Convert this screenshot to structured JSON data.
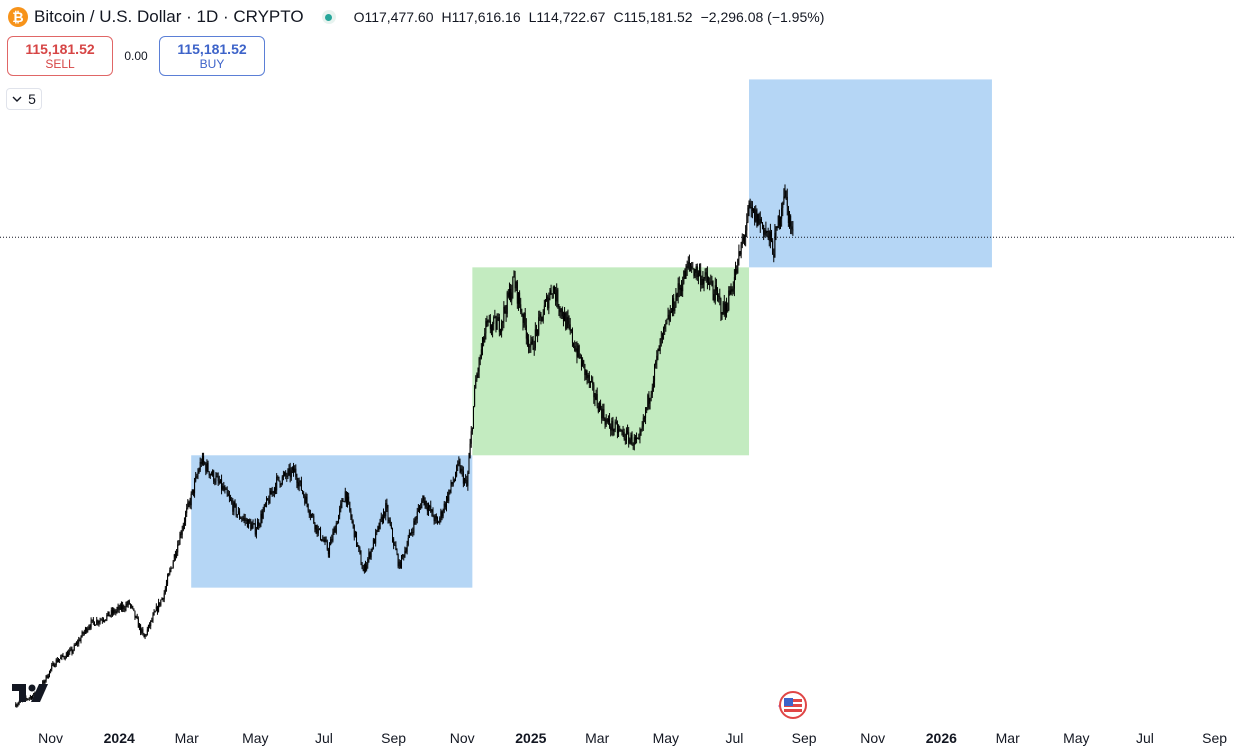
{
  "header": {
    "symbol_title": "Bitcoin / U.S. Dollar · 1D · CRYPTO",
    "icon": "bitcoin-icon",
    "icon_glyph": "₿",
    "open": "O117,477.60",
    "high": "H117,616.16",
    "low": "L114,722.67",
    "close": "C115,181.52",
    "change": "−2,296.08 (−1.95%)"
  },
  "trade": {
    "sell_price": "115,181.52",
    "sell_label": "SELL",
    "spread": "0.00",
    "buy_price": "115,181.52",
    "buy_label": "BUY"
  },
  "indicators_toggle": {
    "count": "5"
  },
  "colors": {
    "sell": "#d64545",
    "buy": "#3d63c9",
    "zone_blue": "#b5d6f5",
    "zone_green": "#c3ebc0",
    "candles": "#000000",
    "status_green": "#26a69a"
  },
  "chart_data": {
    "type": "line",
    "series_style": "candlestick (daily)",
    "x": [
      "2023-10-01",
      "2023-10-20",
      "2023-11-05",
      "2023-11-20",
      "2023-12-05",
      "2023-12-20",
      "2024-01-10",
      "2024-01-23",
      "2024-02-10",
      "2024-02-28",
      "2024-03-05",
      "2024-03-14",
      "2024-04-01",
      "2024-04-15",
      "2024-05-01",
      "2024-05-20",
      "2024-06-05",
      "2024-06-24",
      "2024-07-05",
      "2024-07-20",
      "2024-08-05",
      "2024-08-25",
      "2024-09-06",
      "2024-09-27",
      "2024-10-10",
      "2024-10-29",
      "2024-11-05",
      "2024-11-13",
      "2024-11-22",
      "2024-12-05",
      "2024-12-17",
      "2025-01-01",
      "2025-01-20",
      "2025-02-05",
      "2025-02-25",
      "2025-03-10",
      "2025-04-07",
      "2025-04-25",
      "2025-05-10",
      "2025-05-22",
      "2025-06-10",
      "2025-06-22",
      "2025-07-03",
      "2025-07-14",
      "2025-07-25",
      "2025-08-05",
      "2025-08-14",
      "2025-08-22"
    ],
    "values": [
      27000,
      29000,
      35000,
      37000,
      42000,
      43500,
      46000,
      39500,
      48000,
      62000,
      66000,
      73000,
      68000,
      63000,
      60000,
      69000,
      71000,
      60500,
      56000,
      67000,
      52000,
      64000,
      53000,
      66000,
      61000,
      72000,
      68000,
      88000,
      98000,
      99000,
      107000,
      94000,
      106000,
      97000,
      86000,
      80000,
      76000,
      94000,
      104000,
      110000,
      106000,
      101000,
      109000,
      120000,
      118000,
      113000,
      124000,
      115181
    ],
    "zones": [
      {
        "color": "blue",
        "x_start": "2024-03-05",
        "x_end": "2024-11-10",
        "y_low": 49000,
        "y_high": 74000
      },
      {
        "color": "green",
        "x_start": "2024-11-10",
        "x_end": "2025-07-14",
        "y_low": 74000,
        "y_high": 109500
      },
      {
        "color": "blue",
        "x_start": "2025-07-14",
        "x_end": "2026-02-15",
        "y_low": 109500,
        "y_high": 145000
      }
    ],
    "last_price_line": 115181.52,
    "x_tick_labels": [
      "Nov",
      "2024",
      "Mar",
      "May",
      "Jul",
      "Sep",
      "Nov",
      "2025",
      "Mar",
      "May",
      "Jul",
      "Sep",
      "Nov",
      "2026",
      "Mar",
      "May",
      "Jul",
      "Sep"
    ],
    "x_tick_dates": [
      "2023-11-01",
      "2024-01-01",
      "2024-03-01",
      "2024-05-01",
      "2024-07-01",
      "2024-09-01",
      "2024-11-01",
      "2025-01-01",
      "2025-03-01",
      "2025-05-01",
      "2025-07-01",
      "2025-09-01",
      "2025-11-01",
      "2026-01-01",
      "2026-03-01",
      "2026-05-01",
      "2026-07-01",
      "2026-09-01"
    ],
    "x_range": [
      "2023-09-17",
      "2026-09-20"
    ],
    "ylim": [
      24000,
      160000
    ],
    "grid": false,
    "legend": "none"
  }
}
